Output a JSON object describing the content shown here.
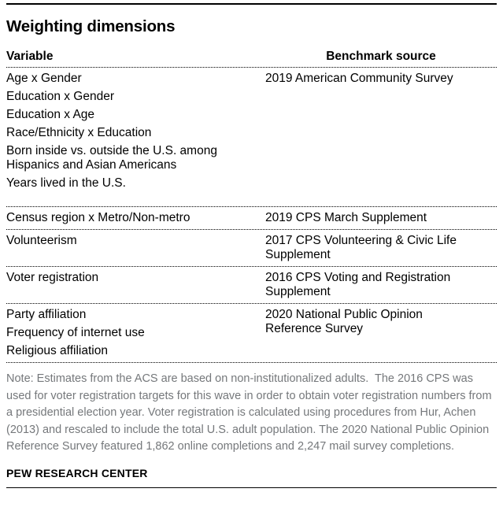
{
  "chart_data": {
    "type": "table",
    "title": "Weighting dimensions",
    "columns": [
      "Variable",
      "Benchmark source"
    ],
    "rows": [
      {
        "variables": [
          "Age x Gender",
          "Education x Gender",
          "Education x Age",
          "Race/Ethnicity x Education",
          "Born inside vs. outside the U.S. among Hispanics and Asian Americans",
          "Years lived in the U.S."
        ],
        "source": "2019 American Community Survey"
      },
      {
        "variables": [
          "Census region x Metro/Non-metro"
        ],
        "source": "2019 CPS March Supplement"
      },
      {
        "variables": [
          "Volunteerism"
        ],
        "source": "2017 CPS Volunteering & Civic Life Supplement"
      },
      {
        "variables": [
          "Voter registration"
        ],
        "source": "2016 CPS Voting and Registration Supplement"
      },
      {
        "variables": [
          "Party affiliation",
          "Frequency of internet use",
          "Religious affiliation"
        ],
        "source": "2020 National Public Opinion Reference Survey"
      }
    ],
    "note": "Note: Estimates from the ACS are based on non-institutionalized adults.  The 2016 CPS was used for voter registration targets for this wave in order to obtain voter registration numbers from a presidential election year. Voter registration is calculated using procedures from Hur, Achen (2013) and rescaled to include the total U.S. adult population. The 2020 National Public Opinion Reference Survey featured 1,862 online completions and 2,247 mail survey completions.",
    "credit": "PEW RESEARCH CENTER",
    "layout": {
      "grid": "off",
      "legend": "none"
    }
  },
  "colors": {
    "text": "#000000",
    "note_gray": "#75787b",
    "rule": "#000000",
    "background": "#ffffff"
  }
}
